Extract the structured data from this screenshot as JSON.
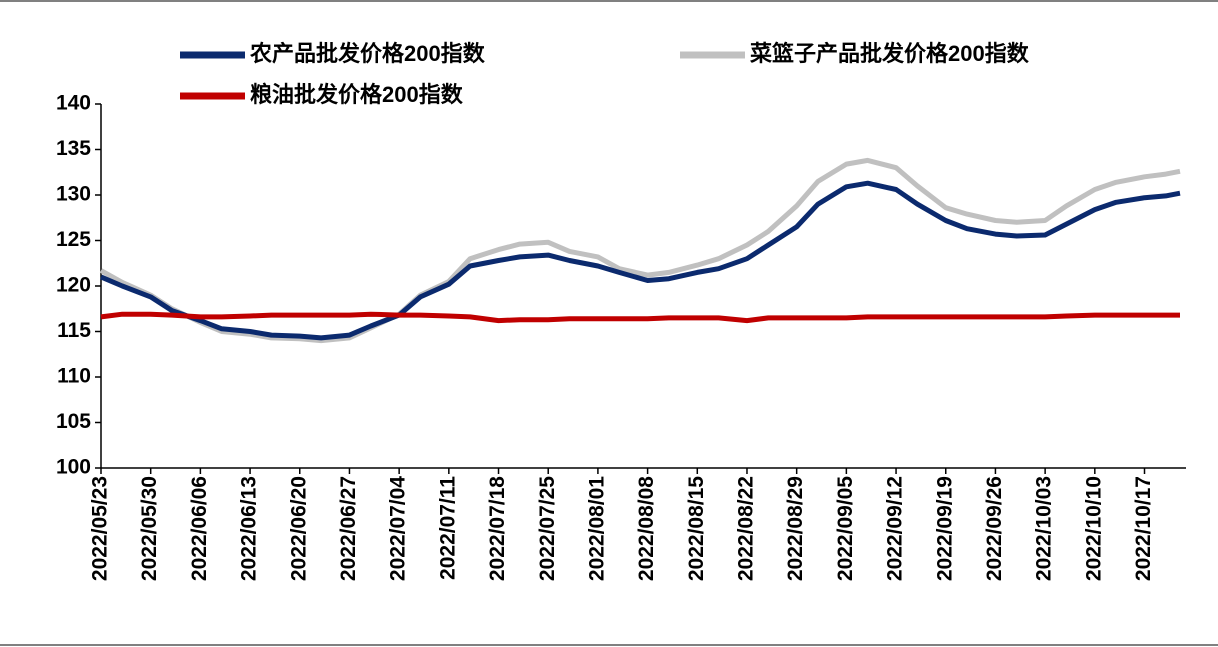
{
  "chart_data": {
    "type": "line",
    "x": [
      "2022/05/23",
      "2022/05/26",
      "2022/05/30",
      "2022/06/02",
      "2022/06/06",
      "2022/06/09",
      "2022/06/13",
      "2022/06/16",
      "2022/06/20",
      "2022/06/23",
      "2022/06/27",
      "2022/06/30",
      "2022/07/04",
      "2022/07/07",
      "2022/07/11",
      "2022/07/14",
      "2022/07/18",
      "2022/07/21",
      "2022/07/25",
      "2022/07/28",
      "2022/08/01",
      "2022/08/04",
      "2022/08/08",
      "2022/08/11",
      "2022/08/15",
      "2022/08/18",
      "2022/08/22",
      "2022/08/25",
      "2022/08/29",
      "2022/09/01",
      "2022/09/05",
      "2022/09/08",
      "2022/09/12",
      "2022/09/15",
      "2022/09/19",
      "2022/09/22",
      "2022/09/26",
      "2022/09/29",
      "2022/10/03",
      "2022/10/06",
      "2022/10/10",
      "2022/10/13",
      "2022/10/17",
      "2022/10/20",
      "2022/10/22"
    ],
    "series": [
      {
        "name": "菜篮子产品批发价格200指数",
        "color": "#c0c0c0",
        "values": [
          121.7,
          120.4,
          119.0,
          117.5,
          116.0,
          115.0,
          114.7,
          114.3,
          114.2,
          114.0,
          114.3,
          115.4,
          116.9,
          119.0,
          120.5,
          123.0,
          124.0,
          124.6,
          124.8,
          123.8,
          123.2,
          121.9,
          121.2,
          121.5,
          122.3,
          123.0,
          124.5,
          126.0,
          128.8,
          131.5,
          133.4,
          133.8,
          133.0,
          131.0,
          128.6,
          127.9,
          127.2,
          127.0,
          127.2,
          128.8,
          130.6,
          131.4,
          132.0,
          132.3,
          132.6
        ]
      },
      {
        "name": "农产品批发价格200指数",
        "color": "#0b2a6e",
        "values": [
          121.0,
          120.0,
          118.8,
          117.3,
          116.2,
          115.3,
          115.0,
          114.6,
          114.5,
          114.3,
          114.6,
          115.6,
          116.8,
          118.8,
          120.2,
          122.2,
          122.8,
          123.2,
          123.4,
          122.8,
          122.2,
          121.5,
          120.6,
          120.8,
          121.5,
          121.9,
          123.0,
          124.5,
          126.5,
          129.0,
          130.9,
          131.3,
          130.6,
          129.0,
          127.2,
          126.3,
          125.7,
          125.5,
          125.6,
          126.8,
          128.4,
          129.2,
          129.7,
          129.9,
          130.2
        ]
      },
      {
        "name": "粮油批发价格200指数",
        "color": "#c00000",
        "values": [
          116.6,
          116.9,
          116.9,
          116.8,
          116.6,
          116.6,
          116.7,
          116.8,
          116.8,
          116.8,
          116.8,
          116.9,
          116.8,
          116.8,
          116.7,
          116.6,
          116.2,
          116.3,
          116.3,
          116.4,
          116.4,
          116.4,
          116.4,
          116.5,
          116.5,
          116.5,
          116.2,
          116.5,
          116.5,
          116.5,
          116.5,
          116.6,
          116.6,
          116.6,
          116.6,
          116.6,
          116.6,
          116.6,
          116.6,
          116.7,
          116.8,
          116.8,
          116.8,
          116.8,
          116.8
        ]
      }
    ],
    "xlim": [
      "2022/05/23",
      "2022/10/22"
    ],
    "xticks": [
      "2022/05/23",
      "2022/05/30",
      "2022/06/06",
      "2022/06/13",
      "2022/06/20",
      "2022/06/27",
      "2022/07/04",
      "2022/07/11",
      "2022/07/18",
      "2022/07/25",
      "2022/08/01",
      "2022/08/08",
      "2022/08/15",
      "2022/08/22",
      "2022/08/29",
      "2022/09/05",
      "2022/09/12",
      "2022/09/19",
      "2022/09/26",
      "2022/10/03",
      "2022/10/10",
      "2022/10/17"
    ],
    "ylim": [
      100,
      140
    ],
    "yticks": [
      100,
      105,
      110,
      115,
      120,
      125,
      130,
      135,
      140
    ]
  }
}
